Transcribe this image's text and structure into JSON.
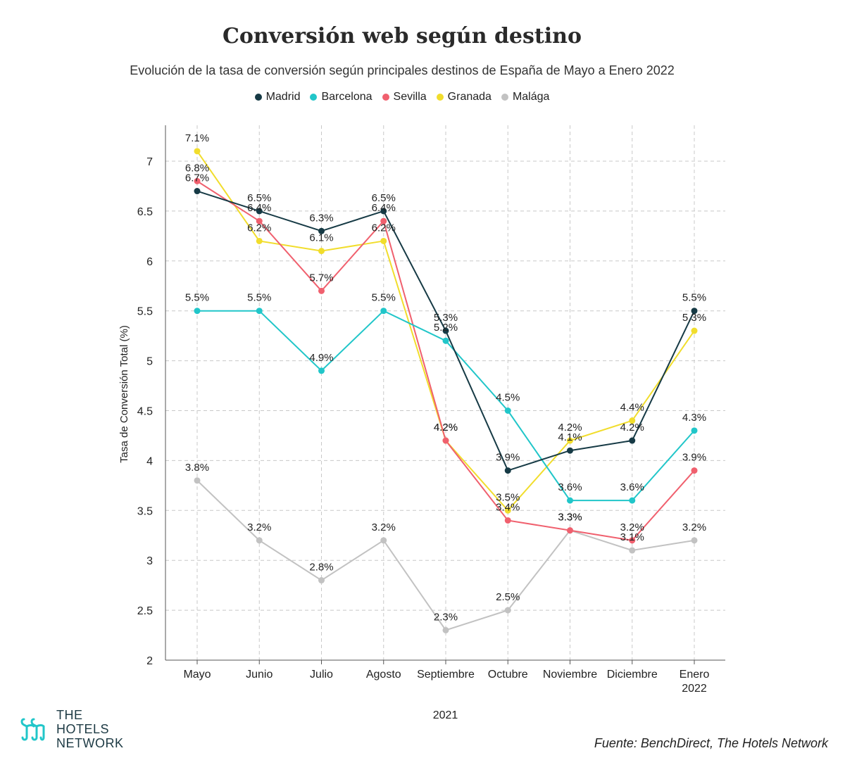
{
  "chart_data": {
    "type": "line",
    "title": "Conversión web según destino",
    "subtitle": "Evolución de la tasa de conversión según principales destinos de España de Mayo a Enero 2022",
    "xlabel": "2021",
    "ylabel": "Tasa de Conversión Total (%)",
    "categories": [
      "Mayo",
      "Junio",
      "Julio",
      "Agosto",
      "Septiembre",
      "Octubre",
      "Noviembre",
      "Diciembre",
      "Enero\n2022"
    ],
    "ylim": [
      2,
      7.3
    ],
    "yticks": [
      "2",
      "2.5",
      "3",
      "3.5",
      "4",
      "4.5",
      "5",
      "5.5",
      "6",
      "6.5",
      "7"
    ],
    "grid": true,
    "legend_position": "top",
    "series": [
      {
        "name": "Madrid",
        "color": "#163a45",
        "values": [
          6.7,
          6.5,
          6.3,
          6.5,
          5.3,
          3.9,
          4.1,
          4.2,
          5.5
        ],
        "labels": [
          "6.7%",
          "6.5%",
          "6.3%",
          "6.5%",
          "5.3%",
          "3.9%",
          "4.1%",
          "4.2%",
          "5.5%"
        ]
      },
      {
        "name": "Barcelona",
        "color": "#21c6c9",
        "values": [
          5.5,
          5.5,
          4.9,
          5.5,
          5.2,
          4.5,
          3.6,
          3.6,
          4.3
        ],
        "labels": [
          "5.5%",
          "5.5%",
          "4.9%",
          "5.5%",
          "5.2%",
          "4.5%",
          "3.6%",
          "3.6%",
          "4.3%"
        ]
      },
      {
        "name": "Sevilla",
        "color": "#f0606e",
        "values": [
          6.8,
          6.4,
          5.7,
          6.4,
          4.2,
          3.4,
          3.3,
          3.2,
          3.9
        ],
        "labels": [
          "6.8%",
          "6.4%",
          "5.7%",
          "6.4%",
          "4.2%",
          "3.4%",
          "3.3%",
          "3.2%",
          "3.9%"
        ]
      },
      {
        "name": "Granada",
        "color": "#f1dd2c",
        "values": [
          7.1,
          6.2,
          6.1,
          6.2,
          4.2,
          3.5,
          4.2,
          4.4,
          5.3
        ],
        "labels": [
          "7.1%",
          "6.2%",
          "6.1%",
          "6.2%",
          "4.2%",
          "3.5%",
          "4.2%",
          "4.4%",
          "5.3%"
        ]
      },
      {
        "name": "Malága",
        "color": "#c2c2c2",
        "values": [
          3.8,
          3.2,
          2.8,
          3.2,
          2.3,
          2.5,
          3.3,
          3.1,
          3.2
        ],
        "labels": [
          "3.8%",
          "3.2%",
          "2.8%",
          "3.2%",
          "2.3%",
          "2.5%",
          "3.3%",
          "3.1%",
          "3.2%"
        ]
      }
    ]
  },
  "brand": {
    "line1": "THE",
    "line2": "HOTELS",
    "line3": "NETWORK",
    "logo_icon": "double-h-logo-icon"
  },
  "source": "Fuente: BenchDirect, The Hotels Network"
}
